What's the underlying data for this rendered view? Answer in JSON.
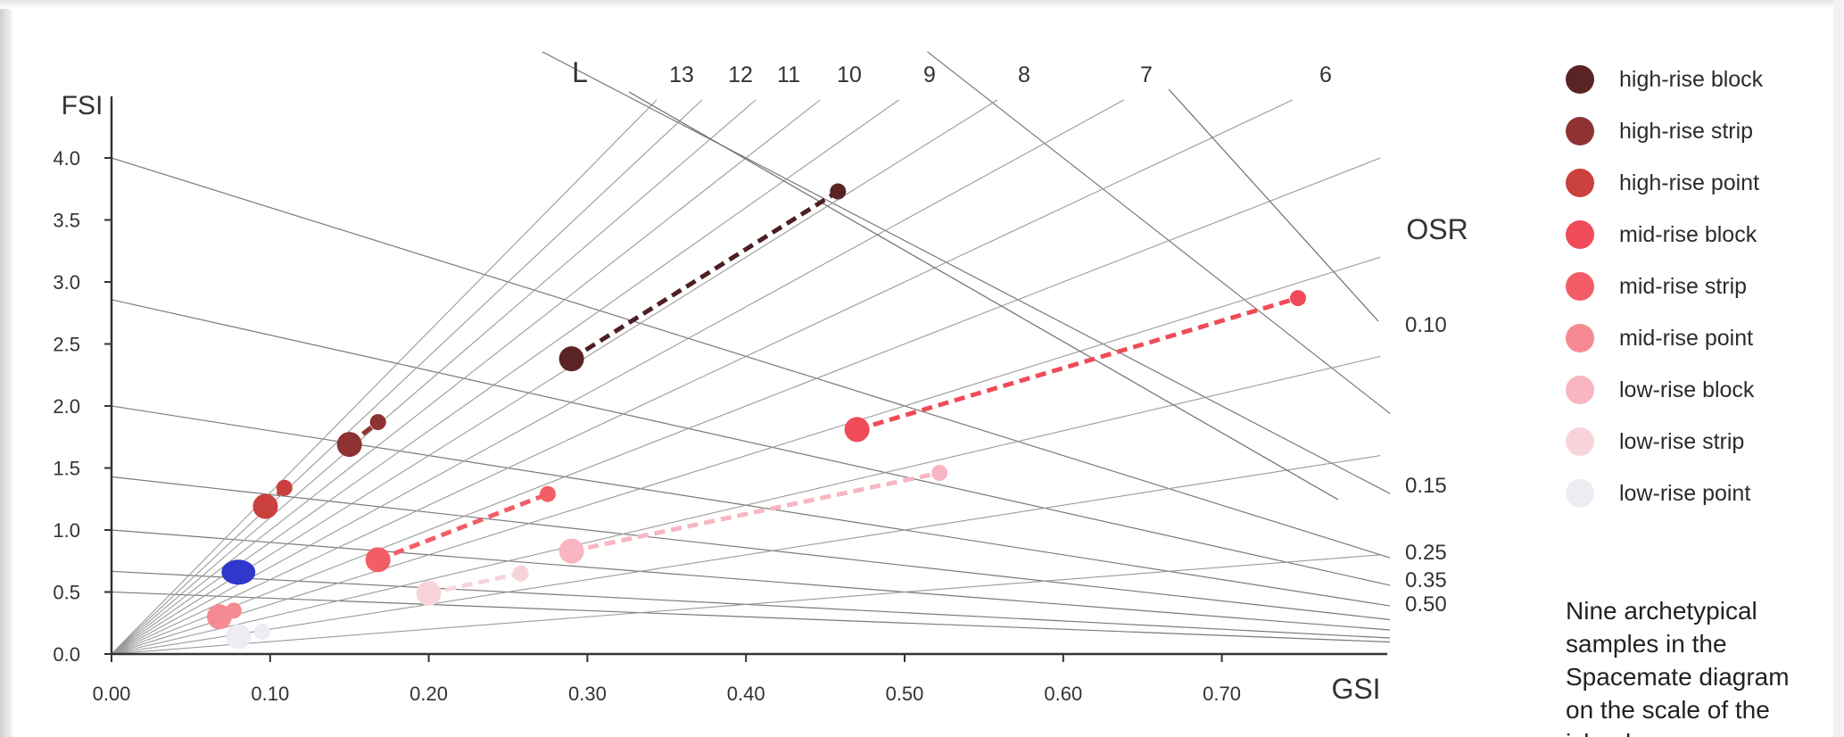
{
  "chart_data": {
    "type": "scatter",
    "xlabel": "GSI",
    "ylabel": "FSI",
    "xlim": [
      0,
      0.8
    ],
    "ylim": [
      0,
      4.5
    ],
    "x_ticks": [
      "0.00",
      "0.10",
      "0.20",
      "0.30",
      "0.40",
      "0.50",
      "0.60",
      "0.70"
    ],
    "y_ticks": [
      "0.0",
      "0.5",
      "1.0",
      "1.5",
      "2.0",
      "2.5",
      "3.0",
      "3.5",
      "4.0"
    ],
    "L_axis_label": "L",
    "L_lines": [
      {
        "label": "13",
        "value": 13
      },
      {
        "label": "12",
        "value": 12
      },
      {
        "label": "11",
        "value": 11
      },
      {
        "label": "10",
        "value": 10
      },
      {
        "label": "9",
        "value": 9
      },
      {
        "label": "8",
        "value": 8
      },
      {
        "label": "7",
        "value": 7
      },
      {
        "label": "6",
        "value": 6
      },
      {
        "label": "",
        "value": 5
      },
      {
        "label": "",
        "value": 4
      },
      {
        "label": "",
        "value": 3
      },
      {
        "label": "",
        "value": 2
      },
      {
        "label": "",
        "value": 1
      }
    ],
    "OSR_axis_label": "OSR",
    "OSR_lines": [
      {
        "label": "0.10",
        "value": 0.1
      },
      {
        "label": "0.15",
        "value": 0.15
      },
      {
        "label": "0.25",
        "value": 0.25
      },
      {
        "label": "0.35",
        "value": 0.35
      },
      {
        "label": "0.50",
        "value": 0.5
      },
      {
        "label": "",
        "value": 0.7
      },
      {
        "label": "",
        "value": 1.0
      },
      {
        "label": "",
        "value": 1.5
      },
      {
        "label": "",
        "value": 2.0
      }
    ],
    "series": [
      {
        "name": "high-rise block",
        "color": "#5a2424",
        "dash": "#4e1e22",
        "points": [
          {
            "x": 0.29,
            "y": 2.38,
            "size": "large"
          },
          {
            "x": 0.458,
            "y": 3.73,
            "size": "small"
          }
        ]
      },
      {
        "name": "high-rise strip",
        "color": "#8e3232",
        "dash": "#8e3232",
        "points": [
          {
            "x": 0.15,
            "y": 1.69,
            "size": "large"
          },
          {
            "x": 0.168,
            "y": 1.87,
            "size": "small"
          }
        ]
      },
      {
        "name": "high-rise point",
        "color": "#c9403e",
        "dash": "#c9403e",
        "points": [
          {
            "x": 0.097,
            "y": 1.19,
            "size": "large"
          },
          {
            "x": 0.109,
            "y": 1.34,
            "size": "small"
          }
        ]
      },
      {
        "name": "mid-rise block",
        "color": "#ef4b58",
        "dash": "#ef4b58",
        "points": [
          {
            "x": 0.47,
            "y": 1.81,
            "size": "large"
          },
          {
            "x": 0.748,
            "y": 2.87,
            "size": "small"
          }
        ]
      },
      {
        "name": "mid-rise strip",
        "color": "#f35d67",
        "dash": "#f35d67",
        "points": [
          {
            "x": 0.168,
            "y": 0.76,
            "size": "large"
          },
          {
            "x": 0.275,
            "y": 1.29,
            "size": "small"
          }
        ]
      },
      {
        "name": "mid-rise point",
        "color": "#f68a92",
        "dash": "#f68a92",
        "points": [
          {
            "x": 0.068,
            "y": 0.3,
            "size": "large"
          },
          {
            "x": 0.077,
            "y": 0.35,
            "size": "small"
          }
        ]
      },
      {
        "name": "low-rise block",
        "color": "#f7b6c2",
        "dash": "#f7b6c2",
        "points": [
          {
            "x": 0.29,
            "y": 0.83,
            "size": "large"
          },
          {
            "x": 0.522,
            "y": 1.46,
            "size": "small"
          }
        ]
      },
      {
        "name": "low-rise strip",
        "color": "#f8d4da",
        "dash": "#f8d4da",
        "points": [
          {
            "x": 0.2,
            "y": 0.49,
            "size": "large"
          },
          {
            "x": 0.258,
            "y": 0.65,
            "size": "small"
          }
        ]
      },
      {
        "name": "low-rise point",
        "color": "#ececf2",
        "dash": "#ececf2",
        "points": [
          {
            "x": 0.08,
            "y": 0.14,
            "size": "large"
          },
          {
            "x": 0.095,
            "y": 0.18,
            "size": "small"
          }
        ]
      }
    ],
    "highlight_point": {
      "x": 0.08,
      "y": 0.66,
      "color": "#2f37cc"
    }
  },
  "caption": "Nine archetypical samples in the Spacemate diagram on the scale of the island"
}
